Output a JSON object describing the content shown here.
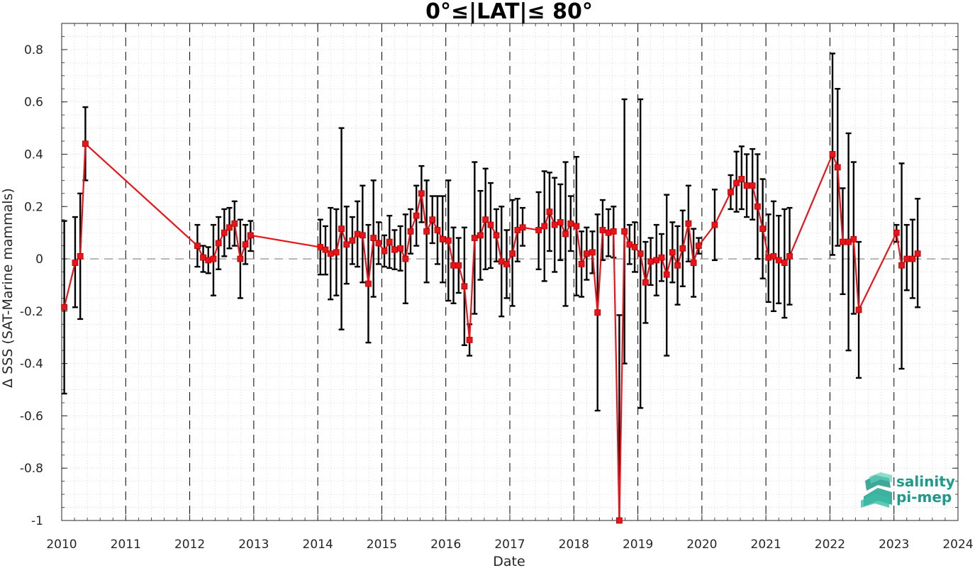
{
  "chart_data": {
    "type": "line",
    "title": "0°≤|LAT|≤ 80°",
    "xlabel": "Date",
    "ylabel": "Δ SSS (SAT-Marine mammals)",
    "xlim": [
      2010,
      2024
    ],
    "ylim": [
      -1,
      0.9
    ],
    "xticks": [
      "2010",
      "2011",
      "2012",
      "2013",
      "2014",
      "2015",
      "2016",
      "2017",
      "2018",
      "2019",
      "2020",
      "2021",
      "2022",
      "2023",
      "2024"
    ],
    "yticks": [
      "0.8",
      "0.6",
      "0.4",
      "0.2",
      "0",
      "-0.2",
      "-0.4",
      "-0.6",
      "-0.8",
      "-1"
    ],
    "ytick_values": [
      0.8,
      0.6,
      0.4,
      0.2,
      0,
      -0.2,
      -0.4,
      -0.6,
      -0.8,
      -1
    ],
    "grid": "dotted minor grid",
    "reference_line": 0,
    "series_color": "#e8141a",
    "errorbar_color": "#000000",
    "points": [
      {
        "x": 2010.04,
        "y": -0.185,
        "lo": -0.515,
        "hi": 0.145
      },
      {
        "x": 2010.21,
        "y": -0.015,
        "lo": -0.185,
        "hi": 0.16
      },
      {
        "x": 2010.29,
        "y": 0.01,
        "lo": -0.23,
        "hi": 0.25
      },
      {
        "x": 2010.37,
        "y": 0.44,
        "lo": 0.3,
        "hi": 0.58
      },
      {
        "x": 2012.12,
        "y": 0.05,
        "lo": -0.03,
        "hi": 0.13
      },
      {
        "x": 2012.21,
        "y": 0.005,
        "lo": -0.05,
        "hi": 0.05
      },
      {
        "x": 2012.29,
        "y": -0.005,
        "lo": -0.055,
        "hi": 0.045
      },
      {
        "x": 2012.37,
        "y": 0.0,
        "lo": -0.14,
        "hi": 0.13
      },
      {
        "x": 2012.45,
        "y": 0.06,
        "lo": -0.04,
        "hi": 0.16
      },
      {
        "x": 2012.54,
        "y": 0.1,
        "lo": 0.01,
        "hi": 0.19
      },
      {
        "x": 2012.62,
        "y": 0.12,
        "lo": 0.04,
        "hi": 0.195
      },
      {
        "x": 2012.7,
        "y": 0.135,
        "lo": 0.05,
        "hi": 0.22
      },
      {
        "x": 2012.79,
        "y": 0.0,
        "lo": -0.15,
        "hi": 0.15
      },
      {
        "x": 2012.87,
        "y": 0.055,
        "lo": -0.02,
        "hi": 0.13
      },
      {
        "x": 2012.95,
        "y": 0.09,
        "lo": 0.03,
        "hi": 0.145
      },
      {
        "x": 2014.04,
        "y": 0.045,
        "lo": -0.06,
        "hi": 0.15
      },
      {
        "x": 2014.12,
        "y": 0.035,
        "lo": -0.06,
        "hi": 0.125
      },
      {
        "x": 2014.2,
        "y": 0.02,
        "lo": -0.155,
        "hi": 0.195
      },
      {
        "x": 2014.29,
        "y": 0.025,
        "lo": -0.14,
        "hi": 0.19
      },
      {
        "x": 2014.37,
        "y": 0.115,
        "lo": -0.27,
        "hi": 0.5
      },
      {
        "x": 2014.45,
        "y": 0.055,
        "lo": -0.095,
        "hi": 0.2
      },
      {
        "x": 2014.54,
        "y": 0.07,
        "lo": -0.02,
        "hi": 0.16
      },
      {
        "x": 2014.62,
        "y": 0.095,
        "lo": -0.03,
        "hi": 0.22
      },
      {
        "x": 2014.7,
        "y": 0.09,
        "lo": -0.09,
        "hi": 0.28
      },
      {
        "x": 2014.79,
        "y": -0.095,
        "lo": -0.32,
        "hi": 0.13
      },
      {
        "x": 2014.87,
        "y": 0.08,
        "lo": -0.145,
        "hi": 0.3
      },
      {
        "x": 2014.95,
        "y": 0.06,
        "lo": -0.02,
        "hi": 0.14
      },
      {
        "x": 2015.04,
        "y": 0.03,
        "lo": -0.03,
        "hi": 0.09
      },
      {
        "x": 2015.12,
        "y": 0.065,
        "lo": -0.035,
        "hi": 0.165
      },
      {
        "x": 2015.2,
        "y": 0.035,
        "lo": -0.04,
        "hi": 0.11
      },
      {
        "x": 2015.29,
        "y": 0.04,
        "lo": -0.045,
        "hi": 0.125
      },
      {
        "x": 2015.37,
        "y": 0.0,
        "lo": -0.17,
        "hi": 0.17
      },
      {
        "x": 2015.45,
        "y": 0.105,
        "lo": 0.02,
        "hi": 0.19
      },
      {
        "x": 2015.54,
        "y": 0.165,
        "lo": 0.05,
        "hi": 0.28
      },
      {
        "x": 2015.62,
        "y": 0.25,
        "lo": 0.14,
        "hi": 0.355
      },
      {
        "x": 2015.7,
        "y": 0.105,
        "lo": -0.09,
        "hi": 0.3
      },
      {
        "x": 2015.79,
        "y": 0.15,
        "lo": 0.06,
        "hi": 0.24
      },
      {
        "x": 2015.87,
        "y": 0.11,
        "lo": -0.02,
        "hi": 0.24
      },
      {
        "x": 2015.95,
        "y": 0.075,
        "lo": -0.09,
        "hi": 0.24
      },
      {
        "x": 2016.04,
        "y": 0.07,
        "lo": -0.16,
        "hi": 0.3
      },
      {
        "x": 2016.12,
        "y": -0.025,
        "lo": -0.17,
        "hi": 0.12
      },
      {
        "x": 2016.2,
        "y": -0.025,
        "lo": -0.13,
        "hi": 0.08
      },
      {
        "x": 2016.29,
        "y": -0.105,
        "lo": -0.33,
        "hi": 0.12
      },
      {
        "x": 2016.37,
        "y": -0.31,
        "lo": -0.37,
        "hi": -0.25
      },
      {
        "x": 2016.45,
        "y": 0.08,
        "lo": -0.21,
        "hi": 0.37
      },
      {
        "x": 2016.54,
        "y": 0.09,
        "lo": -0.08,
        "hi": 0.26
      },
      {
        "x": 2016.62,
        "y": 0.15,
        "lo": -0.04,
        "hi": 0.345
      },
      {
        "x": 2016.7,
        "y": 0.13,
        "lo": -0.035,
        "hi": 0.29
      },
      {
        "x": 2016.79,
        "y": 0.09,
        "lo": -0.01,
        "hi": 0.19
      },
      {
        "x": 2016.87,
        "y": -0.01,
        "lo": -0.22,
        "hi": 0.2
      },
      {
        "x": 2016.95,
        "y": -0.02,
        "lo": -0.15,
        "hi": 0.11
      },
      {
        "x": 2017.04,
        "y": 0.02,
        "lo": -0.18,
        "hi": 0.225
      },
      {
        "x": 2017.12,
        "y": 0.11,
        "lo": -0.01,
        "hi": 0.23
      },
      {
        "x": 2017.2,
        "y": 0.12,
        "lo": 0.05,
        "hi": 0.195
      },
      {
        "x": 2017.45,
        "y": 0.11,
        "lo": -0.04,
        "hi": 0.255
      },
      {
        "x": 2017.54,
        "y": 0.125,
        "lo": -0.085,
        "hi": 0.335
      },
      {
        "x": 2017.62,
        "y": 0.18,
        "lo": 0.03,
        "hi": 0.33
      },
      {
        "x": 2017.7,
        "y": 0.13,
        "lo": -0.05,
        "hi": 0.31
      },
      {
        "x": 2017.79,
        "y": 0.14,
        "lo": -0.005,
        "hi": 0.285
      },
      {
        "x": 2017.87,
        "y": 0.095,
        "lo": -0.18,
        "hi": 0.37
      },
      {
        "x": 2017.95,
        "y": 0.135,
        "lo": 0.03,
        "hi": 0.24
      },
      {
        "x": 2018.04,
        "y": 0.125,
        "lo": -0.14,
        "hi": 0.39
      },
      {
        "x": 2018.12,
        "y": -0.02,
        "lo": -0.145,
        "hi": 0.105
      },
      {
        "x": 2018.2,
        "y": 0.02,
        "lo": -0.08,
        "hi": 0.12
      },
      {
        "x": 2018.29,
        "y": 0.025,
        "lo": -0.055,
        "hi": 0.105
      },
      {
        "x": 2018.37,
        "y": -0.205,
        "lo": -0.58,
        "hi": 0.17
      },
      {
        "x": 2018.45,
        "y": 0.11,
        "lo": -0.005,
        "hi": 0.225
      },
      {
        "x": 2018.54,
        "y": 0.1,
        "lo": 0.01,
        "hi": 0.19
      },
      {
        "x": 2018.62,
        "y": 0.105,
        "lo": 0.005,
        "hi": 0.2
      },
      {
        "x": 2018.71,
        "y": -1.0,
        "lo": -1.0,
        "hi": -0.215
      },
      {
        "x": 2018.79,
        "y": 0.105,
        "lo": -0.4,
        "hi": 0.61
      },
      {
        "x": 2018.87,
        "y": 0.055,
        "lo": -0.02,
        "hi": 0.13
      },
      {
        "x": 2018.95,
        "y": 0.045,
        "lo": -0.05,
        "hi": 0.14
      },
      {
        "x": 2019.04,
        "y": 0.02,
        "lo": -0.57,
        "hi": 0.61
      },
      {
        "x": 2019.12,
        "y": -0.09,
        "lo": -0.245,
        "hi": 0.065
      },
      {
        "x": 2019.2,
        "y": -0.01,
        "lo": -0.1,
        "hi": 0.08
      },
      {
        "x": 2019.29,
        "y": -0.005,
        "lo": -0.14,
        "hi": 0.13
      },
      {
        "x": 2019.37,
        "y": 0.005,
        "lo": -0.085,
        "hi": 0.095
      },
      {
        "x": 2019.45,
        "y": -0.06,
        "lo": -0.37,
        "hi": 0.245
      },
      {
        "x": 2019.54,
        "y": 0.025,
        "lo": -0.09,
        "hi": 0.14
      },
      {
        "x": 2019.62,
        "y": -0.025,
        "lo": -0.175,
        "hi": 0.125
      },
      {
        "x": 2019.7,
        "y": 0.04,
        "lo": -0.105,
        "hi": 0.185
      },
      {
        "x": 2019.79,
        "y": 0.135,
        "lo": -0.01,
        "hi": 0.28
      },
      {
        "x": 2019.87,
        "y": -0.015,
        "lo": -0.145,
        "hi": 0.115
      },
      {
        "x": 2019.95,
        "y": 0.05,
        "lo": 0.02,
        "hi": 0.08
      },
      {
        "x": 2020.2,
        "y": 0.13,
        "lo": -0.005,
        "hi": 0.265
      },
      {
        "x": 2020.45,
        "y": 0.255,
        "lo": 0.19,
        "hi": 0.32
      },
      {
        "x": 2020.54,
        "y": 0.29,
        "lo": 0.18,
        "hi": 0.41
      },
      {
        "x": 2020.62,
        "y": 0.305,
        "lo": 0.19,
        "hi": 0.43
      },
      {
        "x": 2020.7,
        "y": 0.28,
        "lo": 0.16,
        "hi": 0.4
      },
      {
        "x": 2020.79,
        "y": 0.28,
        "lo": 0.15,
        "hi": 0.42
      },
      {
        "x": 2020.87,
        "y": 0.2,
        "lo": 0.0,
        "hi": 0.4
      },
      {
        "x": 2020.95,
        "y": 0.115,
        "lo": -0.075,
        "hi": 0.305
      },
      {
        "x": 2021.04,
        "y": 0.005,
        "lo": -0.165,
        "hi": 0.17
      },
      {
        "x": 2021.12,
        "y": 0.01,
        "lo": -0.2,
        "hi": 0.22
      },
      {
        "x": 2021.2,
        "y": -0.005,
        "lo": -0.17,
        "hi": 0.165
      },
      {
        "x": 2021.29,
        "y": -0.015,
        "lo": -0.225,
        "hi": 0.19
      },
      {
        "x": 2021.37,
        "y": 0.01,
        "lo": -0.175,
        "hi": 0.195
      },
      {
        "x": 2022.04,
        "y": 0.4,
        "lo": 0.015,
        "hi": 0.785
      },
      {
        "x": 2022.12,
        "y": 0.35,
        "lo": 0.05,
        "hi": 0.65
      },
      {
        "x": 2022.2,
        "y": 0.065,
        "lo": -0.135,
        "hi": 0.27
      },
      {
        "x": 2022.29,
        "y": 0.065,
        "lo": -0.35,
        "hi": 0.48
      },
      {
        "x": 2022.37,
        "y": 0.075,
        "lo": -0.21,
        "hi": 0.37
      },
      {
        "x": 2022.45,
        "y": -0.195,
        "lo": -0.455,
        "hi": 0.065
      },
      {
        "x": 2023.04,
        "y": 0.1,
        "lo": 0.065,
        "hi": 0.13
      },
      {
        "x": 2023.12,
        "y": -0.025,
        "lo": -0.42,
        "hi": 0.365
      },
      {
        "x": 2023.2,
        "y": 0.0,
        "lo": -0.12,
        "hi": 0.13
      },
      {
        "x": 2023.29,
        "y": 0.0,
        "lo": -0.15,
        "hi": 0.15
      },
      {
        "x": 2023.37,
        "y": 0.02,
        "lo": -0.185,
        "hi": 0.23
      }
    ]
  },
  "logo": {
    "line1": "salinity",
    "line2": "pi-mep",
    "color": "#1c9a8a"
  }
}
